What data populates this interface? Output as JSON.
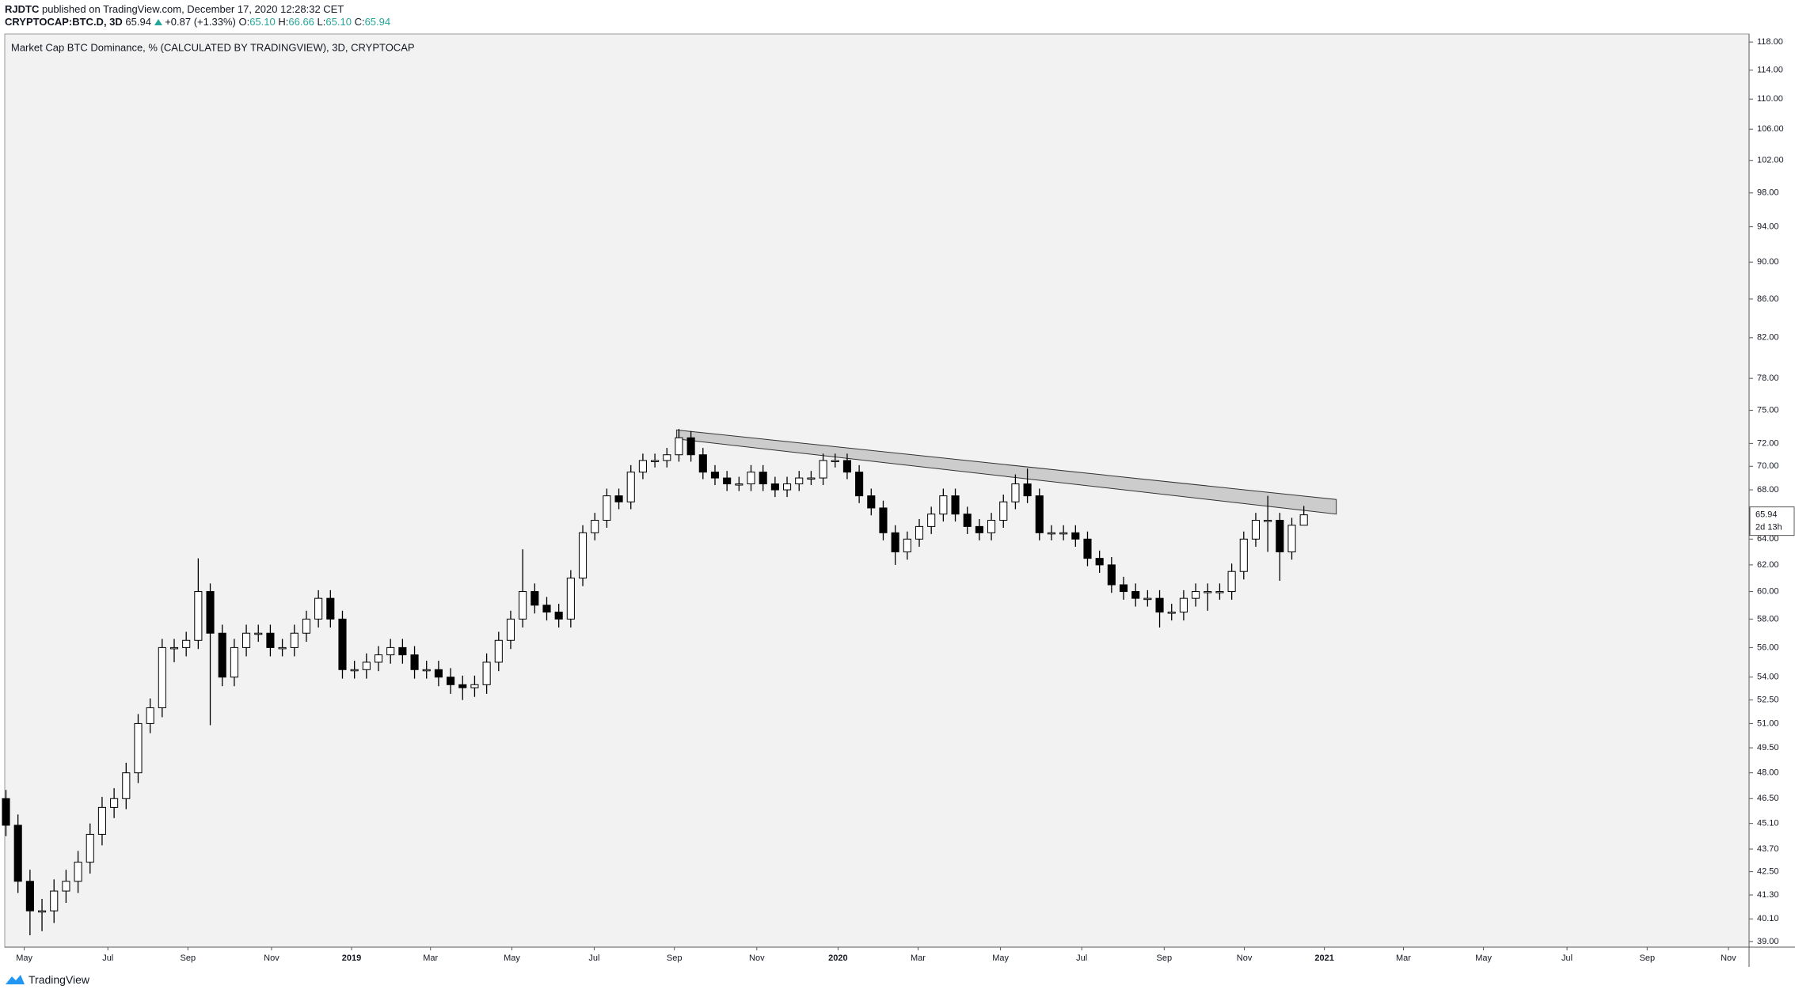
{
  "header": {
    "user": "RJDTC",
    "published": "published on TradingView.com, December 17, 2020 12:28:32 CET",
    "symbol": "CRYPTOCAP:BTC.D, 3D",
    "last": "65.94",
    "change": "+0.87 (+1.33%)",
    "ohlc": [
      {
        "key": "O:",
        "value": "65.10"
      },
      {
        "key": "H:",
        "value": "66.66"
      },
      {
        "key": "L:",
        "value": "65.10"
      },
      {
        "key": "C:",
        "value": "65.94"
      }
    ]
  },
  "footer": "TradingView",
  "chart_data": {
    "type": "candlestick",
    "title": "Market Cap BTC Dominance, % (CALCULATED BY TRADINGVIEW), 3D, CRYPTOCAP",
    "log_scale": true,
    "up_color": "#ffffff",
    "down_color": "#000000",
    "border_color": "#000000",
    "open": [
      46.5,
      45.0,
      42.0,
      40.5,
      40.5,
      41.5,
      42.0,
      43.0,
      44.5,
      46.0,
      46.5,
      48.0,
      51.0,
      52.0,
      56.0,
      56.0,
      56.5,
      60.0,
      57.0,
      54.0,
      56.0,
      57.0,
      57.0,
      56.0,
      56.0,
      57.0,
      58.0,
      59.5,
      58.0,
      54.5,
      54.5,
      55.0,
      55.5,
      56.0,
      55.5,
      54.5,
      54.5,
      54.0,
      53.5,
      53.3,
      53.5,
      55.0,
      56.5,
      58.0,
      60.0,
      59.0,
      58.5,
      58.0,
      61.0,
      64.5,
      65.5,
      67.5,
      67.0,
      69.5,
      70.5,
      70.5,
      71.0,
      72.5,
      71.0,
      69.5,
      69.0,
      68.5,
      68.5,
      69.5,
      68.5,
      68.0,
      68.5,
      69.0,
      69.0,
      70.5,
      70.5,
      69.5,
      67.5,
      66.5,
      64.5,
      63.0,
      64.0,
      65.0,
      66.0,
      67.5,
      66.0,
      65.0,
      64.5,
      65.5,
      67.0,
      68.5,
      67.5,
      64.5,
      64.5,
      64.5,
      64.0,
      62.5,
      62.0,
      60.5,
      60.0,
      59.5,
      59.5,
      58.5,
      58.5,
      59.5,
      60.0,
      60.0,
      60.0,
      61.5,
      64.0,
      65.5,
      65.5,
      63.0,
      65.1
    ],
    "high": [
      47.0,
      45.6,
      42.6,
      41.1,
      42.1,
      42.6,
      43.6,
      45.1,
      46.6,
      47.1,
      48.6,
      51.6,
      52.6,
      56.6,
      56.6,
      57.1,
      62.5,
      60.6,
      57.6,
      56.6,
      57.6,
      57.6,
      57.6,
      56.6,
      57.6,
      58.6,
      60.1,
      60.1,
      58.6,
      55.1,
      55.6,
      56.1,
      56.6,
      56.6,
      56.1,
      55.1,
      55.1,
      54.6,
      54.1,
      54.1,
      55.6,
      57.1,
      58.6,
      63.2,
      60.6,
      59.6,
      59.1,
      61.6,
      65.1,
      66.1,
      68.1,
      68.1,
      70.1,
      71.1,
      71.1,
      71.6,
      73.3,
      73.1,
      71.6,
      70.1,
      69.6,
      69.1,
      70.1,
      70.1,
      69.1,
      69.1,
      69.6,
      69.6,
      71.1,
      71.1,
      71.1,
      70.1,
      68.1,
      67.1,
      65.1,
      64.6,
      65.6,
      66.6,
      68.1,
      68.1,
      66.6,
      65.6,
      66.1,
      67.6,
      69.3,
      69.8,
      68.1,
      65.1,
      65.1,
      65.1,
      64.6,
      63.1,
      62.6,
      61.1,
      60.6,
      60.1,
      60.1,
      59.1,
      60.1,
      60.6,
      60.6,
      60.6,
      62.1,
      64.6,
      66.1,
      67.5,
      66.1,
      65.7,
      66.66
    ],
    "low": [
      44.4,
      41.4,
      39.3,
      39.5,
      39.9,
      40.9,
      41.4,
      42.4,
      43.9,
      45.4,
      45.9,
      47.4,
      50.4,
      51.4,
      55.0,
      55.4,
      55.9,
      50.9,
      53.4,
      53.4,
      55.4,
      56.4,
      55.4,
      55.4,
      55.4,
      56.4,
      57.4,
      57.4,
      53.9,
      53.9,
      53.9,
      54.4,
      54.9,
      54.9,
      53.9,
      53.9,
      53.4,
      52.9,
      52.5,
      52.7,
      52.9,
      54.4,
      55.9,
      57.4,
      58.4,
      57.9,
      57.4,
      57.4,
      60.4,
      63.9,
      64.9,
      66.4,
      66.4,
      68.9,
      69.9,
      69.9,
      70.4,
      70.4,
      68.9,
      68.4,
      67.9,
      67.9,
      67.9,
      67.9,
      67.4,
      67.4,
      67.9,
      68.4,
      68.4,
      69.9,
      68.9,
      66.9,
      65.9,
      63.9,
      62.0,
      62.4,
      63.4,
      64.4,
      65.4,
      65.4,
      64.4,
      63.9,
      63.9,
      64.9,
      66.4,
      66.9,
      63.9,
      63.9,
      63.9,
      63.4,
      61.9,
      61.4,
      59.9,
      59.4,
      58.9,
      58.9,
      57.4,
      57.9,
      57.9,
      58.9,
      58.6,
      59.4,
      59.4,
      60.9,
      63.4,
      63.0,
      60.8,
      62.4,
      65.1
    ],
    "close": [
      45.0,
      42.0,
      40.5,
      40.5,
      41.5,
      42.0,
      43.0,
      44.5,
      46.0,
      46.5,
      48.0,
      51.0,
      52.0,
      56.0,
      56.0,
      56.5,
      60.0,
      57.0,
      54.0,
      56.0,
      57.0,
      57.0,
      56.0,
      56.0,
      57.0,
      58.0,
      59.5,
      58.0,
      54.5,
      54.5,
      55.0,
      55.5,
      56.0,
      55.5,
      54.5,
      54.5,
      54.0,
      53.5,
      53.3,
      53.5,
      55.0,
      56.5,
      58.0,
      60.0,
      59.0,
      58.5,
      58.0,
      61.0,
      64.5,
      65.5,
      67.5,
      67.0,
      69.5,
      70.5,
      70.5,
      71.0,
      72.5,
      71.0,
      69.5,
      69.0,
      68.5,
      68.5,
      69.5,
      68.5,
      68.0,
      68.5,
      69.0,
      69.0,
      70.5,
      70.5,
      69.5,
      67.5,
      66.5,
      64.5,
      63.0,
      64.0,
      65.0,
      66.0,
      67.5,
      66.0,
      65.0,
      64.5,
      65.5,
      67.0,
      68.5,
      67.5,
      64.5,
      64.5,
      64.5,
      64.0,
      62.5,
      62.0,
      60.5,
      60.0,
      59.5,
      59.5,
      58.5,
      58.5,
      59.5,
      60.0,
      60.0,
      60.0,
      61.5,
      64.0,
      65.5,
      65.5,
      63.0,
      65.1,
      65.94
    ],
    "countdown": "2d 13h",
    "channel": {
      "x": [
        55.8,
        110.7
      ],
      "upper": [
        73.2,
        67.2
      ],
      "lower": [
        72.4,
        66.0
      ],
      "color": "#cccccc"
    },
    "xlim": [
      -0.1,
      145.05
    ],
    "xticks": [
      {
        "value": 1.52,
        "label": "May"
      },
      {
        "value": 8.48,
        "label": "Jul"
      },
      {
        "value": 15.14,
        "label": "Sep"
      },
      {
        "value": 22.1,
        "label": "Nov"
      },
      {
        "value": 28.76,
        "label": "2019"
      },
      {
        "value": 35.33,
        "label": "Mar"
      },
      {
        "value": 42.1,
        "label": "May"
      },
      {
        "value": 48.95,
        "label": "Jul"
      },
      {
        "value": 55.62,
        "label": "Sep"
      },
      {
        "value": 62.48,
        "label": "Nov"
      },
      {
        "value": 69.24,
        "label": "2020"
      },
      {
        "value": 75.9,
        "label": "Mar"
      },
      {
        "value": 82.76,
        "label": "May"
      },
      {
        "value": 89.52,
        "label": "Jul"
      },
      {
        "value": 96.38,
        "label": "Sep"
      },
      {
        "value": 103.05,
        "label": "Nov"
      },
      {
        "value": 109.71,
        "label": "2021"
      },
      {
        "value": 116.29,
        "label": "Mar"
      },
      {
        "value": 122.95,
        "label": "May"
      },
      {
        "value": 129.9,
        "label": "Jul"
      },
      {
        "value": 136.57,
        "label": "Sep"
      },
      {
        "value": 143.33,
        "label": "Nov"
      }
    ],
    "ylim": [
      38.73,
      119.17
    ],
    "yticks": [
      {
        "value": 118,
        "label": "118.00"
      },
      {
        "value": 114,
        "label": "114.00"
      },
      {
        "value": 110,
        "label": "110.00"
      },
      {
        "value": 106,
        "label": "106.00"
      },
      {
        "value": 102,
        "label": "102.00"
      },
      {
        "value": 98,
        "label": "98.00"
      },
      {
        "value": 94,
        "label": "94.00"
      },
      {
        "value": 90,
        "label": "90.00"
      },
      {
        "value": 86,
        "label": "86.00"
      },
      {
        "value": 82,
        "label": "82.00"
      },
      {
        "value": 78,
        "label": "78.00"
      },
      {
        "value": 75,
        "label": "75.00"
      },
      {
        "value": 72,
        "label": "72.00"
      },
      {
        "value": 70,
        "label": "70.00"
      },
      {
        "value": 68,
        "label": "68.00"
      },
      {
        "value": 64,
        "label": "64.00"
      },
      {
        "value": 62,
        "label": "62.00"
      },
      {
        "value": 60,
        "label": "60.00"
      },
      {
        "value": 58,
        "label": "58.00"
      },
      {
        "value": 56,
        "label": "56.00"
      },
      {
        "value": 54,
        "label": "54.00"
      },
      {
        "value": 52.5,
        "label": "52.50"
      },
      {
        "value": 51,
        "label": "51.00"
      },
      {
        "value": 49.5,
        "label": "49.50"
      },
      {
        "value": 48,
        "label": "48.00"
      },
      {
        "value": 46.5,
        "label": "46.50"
      },
      {
        "value": 45.1,
        "label": "45.10"
      },
      {
        "value": 43.7,
        "label": "43.70"
      },
      {
        "value": 42.5,
        "label": "42.50"
      },
      {
        "value": 41.3,
        "label": "41.30"
      },
      {
        "value": 40.1,
        "label": "40.10"
      },
      {
        "value": 39,
        "label": "39.00"
      }
    ]
  }
}
